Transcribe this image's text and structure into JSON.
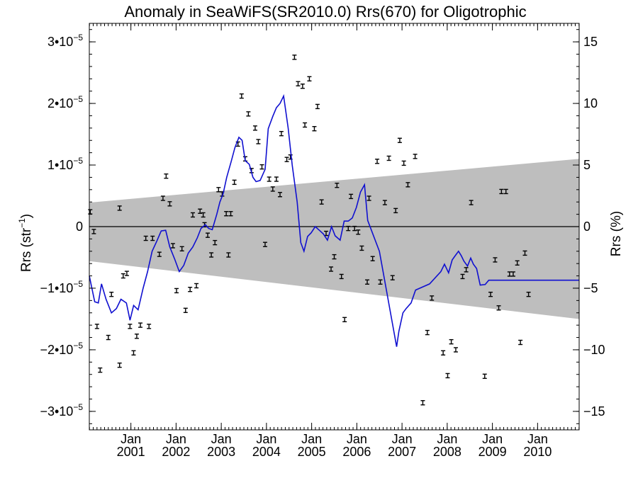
{
  "chart_data": {
    "type": "line",
    "title": "Anomaly in SeaWiFS(SR2010.0) Rrs(670) for Oligotrophic",
    "ylabel_left": "Rrs (str⁻¹)",
    "ylabel_right": "Rrs (%)",
    "xlim": [
      2000.08,
      2010.92
    ],
    "ylim_left": [
      -3.3e-05,
      3.3e-05
    ],
    "ylim_right": [
      -16.5,
      16.5
    ],
    "grid": false,
    "zero_line": true,
    "left_ticks": [
      {
        "value": 3e-05,
        "label": "3•10",
        "exp": "−5"
      },
      {
        "value": 2e-05,
        "label": "2•10",
        "exp": "−5"
      },
      {
        "value": 1e-05,
        "label": "1•10",
        "exp": "−5"
      },
      {
        "value": 0,
        "label": "0",
        "exp": ""
      },
      {
        "value": -1e-05,
        "label": "−1•10",
        "exp": "−5"
      },
      {
        "value": -2e-05,
        "label": "−2•10",
        "exp": "−5"
      },
      {
        "value": -3e-05,
        "label": "−3•10",
        "exp": "−5"
      }
    ],
    "right_ticks": [
      {
        "value": 15,
        "label": "15"
      },
      {
        "value": 10,
        "label": "10"
      },
      {
        "value": 5,
        "label": "5"
      },
      {
        "value": 0,
        "label": "0"
      },
      {
        "value": -5,
        "label": "−5"
      },
      {
        "value": -10,
        "label": "−10"
      },
      {
        "value": -15,
        "label": "−15"
      }
    ],
    "x_ticks": [
      {
        "value": 2001.0,
        "month": "Jan",
        "year": "2001"
      },
      {
        "value": 2002.0,
        "month": "Jan",
        "year": "2002"
      },
      {
        "value": 2003.0,
        "month": "Jan",
        "year": "2003"
      },
      {
        "value": 2004.0,
        "month": "Jan",
        "year": "2004"
      },
      {
        "value": 2005.0,
        "month": "Jan",
        "year": "2005"
      },
      {
        "value": 2006.0,
        "month": "Jan",
        "year": "2006"
      },
      {
        "value": 2007.0,
        "month": "Jan",
        "year": "2007"
      },
      {
        "value": 2008.0,
        "month": "Jan",
        "year": "2008"
      },
      {
        "value": 2009.0,
        "month": "Jan",
        "year": "2009"
      },
      {
        "value": 2010.0,
        "month": "Jan",
        "year": "2010"
      }
    ],
    "band": {
      "x": [
        2000.08,
        2010.92
      ],
      "upper": [
        3.9e-06,
        1.1e-05
      ],
      "lower": [
        -5.6e-06,
        -1.5e-05
      ],
      "color": "#bebebe"
    },
    "smoothed_series": {
      "color": "#1010d0",
      "points": [
        [
          2000.08,
          -8e-06
        ],
        [
          2000.2,
          -1.22e-05
        ],
        [
          2000.28,
          -1.24e-05
        ],
        [
          2000.35,
          -9.3e-06
        ],
        [
          2000.45,
          -1.18e-05
        ],
        [
          2000.57,
          -1.4e-05
        ],
        [
          2000.68,
          -1.33e-05
        ],
        [
          2000.78,
          -1.18e-05
        ],
        [
          2000.9,
          -1.24e-05
        ],
        [
          2000.98,
          -1.52e-05
        ],
        [
          2001.06,
          -1.28e-05
        ],
        [
          2001.16,
          -1.35e-05
        ],
        [
          2001.27,
          -1e-05
        ],
        [
          2001.37,
          -7.3e-06
        ],
        [
          2001.47,
          -4e-06
        ],
        [
          2001.57,
          -2.4e-06
        ],
        [
          2001.67,
          -7e-07
        ],
        [
          2001.77,
          -6e-07
        ],
        [
          2001.86,
          -3.3e-06
        ],
        [
          2001.97,
          -5.3e-06
        ],
        [
          2002.07,
          -7.3e-06
        ],
        [
          2002.17,
          -6.3e-06
        ],
        [
          2002.27,
          -4.3e-06
        ],
        [
          2002.37,
          -3.3e-06
        ],
        [
          2002.47,
          -1.8e-06
        ],
        [
          2002.55,
          -3e-07
        ],
        [
          2002.65,
          3e-07
        ],
        [
          2002.72,
          -3e-07
        ],
        [
          2002.8,
          -5e-07
        ],
        [
          2002.9,
          2e-06
        ],
        [
          2002.97,
          4e-06
        ],
        [
          2003.04,
          5.3e-06
        ],
        [
          2003.12,
          8e-06
        ],
        [
          2003.22,
          1.06e-05
        ],
        [
          2003.3,
          1.28e-05
        ],
        [
          2003.39,
          1.45e-05
        ],
        [
          2003.46,
          1.4e-05
        ],
        [
          2003.53,
          1.07e-05
        ],
        [
          2003.62,
          1.01e-05
        ],
        [
          2003.7,
          8e-06
        ],
        [
          2003.77,
          7.3e-06
        ],
        [
          2003.86,
          7.5e-06
        ],
        [
          2003.97,
          9.3e-06
        ],
        [
          2004.04,
          1.59e-05
        ],
        [
          2004.14,
          1.79e-05
        ],
        [
          2004.22,
          1.93e-05
        ],
        [
          2004.3,
          2e-05
        ],
        [
          2004.38,
          2.12e-05
        ],
        [
          2004.48,
          1.6e-05
        ],
        [
          2004.57,
          1e-05
        ],
        [
          2004.68,
          4e-06
        ],
        [
          2004.76,
          -2.6e-06
        ],
        [
          2004.83,
          -4e-06
        ],
        [
          2004.91,
          -1.6e-06
        ],
        [
          2004.99,
          -1e-06
        ],
        [
          2005.08,
          0.0
        ],
        [
          2005.17,
          -6e-07
        ],
        [
          2005.26,
          -1.2e-06
        ],
        [
          2005.35,
          -2.2e-06
        ],
        [
          2005.44,
          0.0
        ],
        [
          2005.52,
          -1.5e-06
        ],
        [
          2005.63,
          -2.2e-06
        ],
        [
          2005.72,
          9e-07
        ],
        [
          2005.81,
          9e-07
        ],
        [
          2005.9,
          1.4e-06
        ],
        [
          2005.99,
          3.1e-06
        ],
        [
          2006.08,
          5.6e-06
        ],
        [
          2006.17,
          6.8e-06
        ],
        [
          2006.24,
          1e-06
        ],
        [
          2006.5,
          -4e-06
        ],
        [
          2006.88,
          -1.95e-05
        ],
        [
          2006.93,
          -1.7e-05
        ],
        [
          2007.02,
          -1.4e-05
        ],
        [
          2007.09,
          -1.33e-05
        ],
        [
          2007.2,
          -1.24e-05
        ],
        [
          2007.3,
          -1.03e-05
        ],
        [
          2007.61,
          -9.3e-06
        ],
        [
          2007.86,
          -7.3e-06
        ],
        [
          2007.94,
          -6.1e-06
        ],
        [
          2008.03,
          -7.5e-06
        ],
        [
          2008.11,
          -5.4e-06
        ],
        [
          2008.18,
          -4.7e-06
        ],
        [
          2008.25,
          -4e-06
        ],
        [
          2008.31,
          -4.7e-06
        ],
        [
          2008.37,
          -5.6e-06
        ],
        [
          2008.45,
          -6.4e-06
        ],
        [
          2008.52,
          -5.1e-06
        ],
        [
          2008.58,
          -6.1e-06
        ],
        [
          2008.65,
          -6.8e-06
        ],
        [
          2008.73,
          -9.5e-06
        ],
        [
          2008.84,
          -9.4e-06
        ],
        [
          2008.92,
          -8.7e-06
        ],
        [
          2010.92,
          -8.7e-06
        ]
      ]
    },
    "monthly_points": {
      "color": "#000000",
      "points": [
        [
          2000.1,
          2.4e-06
        ],
        [
          2000.18,
          -8e-07
        ],
        [
          2000.25,
          -1.62e-05
        ],
        [
          2000.32,
          -2.33e-05
        ],
        [
          2000.5,
          -1.8e-05
        ],
        [
          2000.57,
          -1.1e-05
        ],
        [
          2000.75,
          3e-06
        ],
        [
          2000.75,
          -2.25e-05
        ],
        [
          2000.83,
          -8e-06
        ],
        [
          2000.91,
          -7.6e-06
        ],
        [
          2000.98,
          -1.62e-05
        ],
        [
          2001.06,
          -2.05e-05
        ],
        [
          2001.13,
          -1.78e-05
        ],
        [
          2001.21,
          -1.6e-05
        ],
        [
          2001.33,
          -1.9e-06
        ],
        [
          2001.4,
          -1.62e-05
        ],
        [
          2001.48,
          -1.9e-06
        ],
        [
          2001.63,
          -4.5e-06
        ],
        [
          2001.71,
          4.6e-06
        ],
        [
          2001.78,
          8.2e-06
        ],
        [
          2001.86,
          3.7e-06
        ],
        [
          2001.93,
          -3.1e-06
        ],
        [
          2002.01,
          -1.04e-05
        ],
        [
          2002.13,
          -3.6e-06
        ],
        [
          2002.21,
          -1.36e-05
        ],
        [
          2002.31,
          -1.02e-05
        ],
        [
          2002.37,
          1.9e-06
        ],
        [
          2002.45,
          -9.6e-06
        ],
        [
          2002.53,
          2.5e-06
        ],
        [
          2002.6,
          1.9e-06
        ],
        [
          2002.63,
          3e-07
        ],
        [
          2002.7,
          -1.4e-06
        ],
        [
          2002.78,
          -4.6e-06
        ],
        [
          2002.86,
          -2.6e-06
        ],
        [
          2002.94,
          6e-06
        ],
        [
          2003.02,
          5.3e-06
        ],
        [
          2003.11,
          2.1e-06
        ],
        [
          2003.16,
          -4.6e-06
        ],
        [
          2003.21,
          2.1e-06
        ],
        [
          2003.29,
          7.2e-06
        ],
        [
          2003.37,
          1.34e-05
        ],
        [
          2003.45,
          2.12e-05
        ],
        [
          2003.53,
          1.1e-05
        ],
        [
          2003.6,
          1.83e-05
        ],
        [
          2003.67,
          9.1e-06
        ],
        [
          2003.75,
          1.6e-05
        ],
        [
          2003.82,
          1.38e-05
        ],
        [
          2003.9,
          9.7e-06
        ],
        [
          2003.97,
          -2.9e-06
        ],
        [
          2004.06,
          7.7e-06
        ],
        [
          2004.14,
          6.1e-06
        ],
        [
          2004.22,
          7.7e-06
        ],
        [
          2004.3,
          5.2e-06
        ],
        [
          2004.33,
          1.51e-05
        ],
        [
          2004.45,
          1.09e-05
        ],
        [
          2004.53,
          1.13e-05
        ],
        [
          2004.62,
          2.75e-05
        ],
        [
          2004.7,
          2.32e-05
        ],
        [
          2004.8,
          2.28e-05
        ],
        [
          2004.85,
          1.65e-05
        ],
        [
          2004.95,
          2.4e-05
        ],
        [
          2005.06,
          1.59e-05
        ],
        [
          2005.13,
          1.95e-05
        ],
        [
          2005.22,
          4e-06
        ],
        [
          2005.32,
          -1.1e-06
        ],
        [
          2005.43,
          -6.9e-06
        ],
        [
          2005.5,
          -4.9e-06
        ],
        [
          2005.56,
          6.7e-06
        ],
        [
          2005.66,
          -8.1e-06
        ],
        [
          2005.73,
          -1.51e-05
        ],
        [
          2005.81,
          -3e-07
        ],
        [
          2005.87,
          4.9e-06
        ],
        [
          2005.95,
          -3e-07
        ],
        [
          2006.03,
          -9e-07
        ],
        [
          2006.11,
          -3.5e-06
        ],
        [
          2006.23,
          -9e-06
        ],
        [
          2006.27,
          4.6e-06
        ],
        [
          2006.35,
          -5.2e-06
        ],
        [
          2006.45,
          1.06e-05
        ],
        [
          2006.52,
          -9e-06
        ],
        [
          2006.62,
          3.9e-06
        ],
        [
          2006.71,
          1.11e-05
        ],
        [
          2006.79,
          -8.3e-06
        ],
        [
          2006.86,
          2.6e-06
        ],
        [
          2006.95,
          1.4e-05
        ],
        [
          2007.04,
          1.03e-05
        ],
        [
          2007.13,
          6.8e-06
        ],
        [
          2007.29,
          1.14e-05
        ],
        [
          2007.46,
          -2.86e-05
        ],
        [
          2007.56,
          -1.72e-05
        ],
        [
          2007.66,
          -1.16e-05
        ],
        [
          2007.91,
          -2.05e-05
        ],
        [
          2008.01,
          -2.42e-05
        ],
        [
          2008.09,
          -1.87e-05
        ],
        [
          2008.19,
          -2e-05
        ],
        [
          2008.34,
          -8.1e-06
        ],
        [
          2008.42,
          -7e-06
        ],
        [
          2008.53,
          3.9e-06
        ],
        [
          2008.83,
          -2.43e-05
        ],
        [
          2008.96,
          -1.1e-05
        ],
        [
          2009.06,
          -5.4e-06
        ],
        [
          2009.14,
          -1.32e-05
        ],
        [
          2009.2,
          5.7e-06
        ],
        [
          2009.3,
          5.7e-06
        ],
        [
          2009.38,
          -7.7e-06
        ],
        [
          2009.46,
          -7.7e-06
        ],
        [
          2009.55,
          -5.9e-06
        ],
        [
          2009.62,
          -1.88e-05
        ],
        [
          2009.72,
          -4.3e-06
        ],
        [
          2009.8,
          -1.1e-05
        ]
      ]
    }
  }
}
